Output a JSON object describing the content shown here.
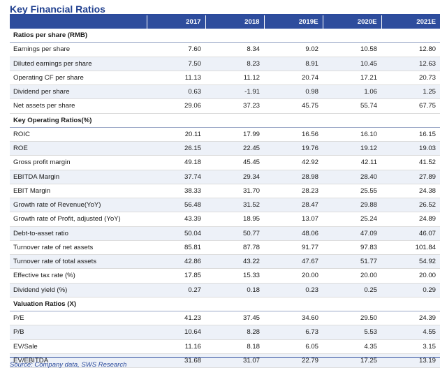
{
  "title": "Key Financial Ratios",
  "columns": [
    "2017",
    "2018",
    "2019E",
    "2020E",
    "2021E"
  ],
  "sections": [
    {
      "heading": "Ratios per share (RMB)",
      "rows": [
        {
          "label": "Earnings per share",
          "values": [
            "7.60",
            "8.34",
            "9.02",
            "10.58",
            "12.80"
          ]
        },
        {
          "label": "Diluted earnings per share",
          "values": [
            "7.50",
            "8.23",
            "8.91",
            "10.45",
            "12.63"
          ]
        },
        {
          "label": "Operating CF per share",
          "values": [
            "11.13",
            "11.12",
            "20.74",
            "17.21",
            "20.73"
          ]
        },
        {
          "label": "Dividend per share",
          "values": [
            "0.63",
            "-1.91",
            "0.98",
            "1.06",
            "1.25"
          ]
        },
        {
          "label": "Net assets per share",
          "values": [
            "29.06",
            "37.23",
            "45.75",
            "55.74",
            "67.75"
          ]
        }
      ]
    },
    {
      "heading": "Key Operating Ratios(%)",
      "rows": [
        {
          "label": "ROIC",
          "values": [
            "20.11",
            "17.99",
            "16.56",
            "16.10",
            "16.15"
          ]
        },
        {
          "label": "ROE",
          "values": [
            "26.15",
            "22.45",
            "19.76",
            "19.12",
            "19.03"
          ]
        },
        {
          "label": "Gross profit margin",
          "values": [
            "49.18",
            "45.45",
            "42.92",
            "42.11",
            "41.52"
          ]
        },
        {
          "label": "EBITDA Margin",
          "values": [
            "37.74",
            "29.34",
            "28.98",
            "28.40",
            "27.89"
          ]
        },
        {
          "label": "EBIT Margin",
          "values": [
            "38.33",
            "31.70",
            "28.23",
            "25.55",
            "24.38"
          ]
        },
        {
          "label": "Growth rate of Revenue(YoY)",
          "values": [
            "56.48",
            "31.52",
            "28.47",
            "29.88",
            "26.52"
          ]
        },
        {
          "label": "Growth rate of Profit, adjusted (YoY)",
          "values": [
            "43.39",
            "18.95",
            "13.07",
            "25.24",
            "24.89"
          ]
        },
        {
          "label": "Debt-to-asset ratio",
          "values": [
            "50.04",
            "50.77",
            "48.06",
            "47.09",
            "46.07"
          ]
        },
        {
          "label": "Turnover rate of net assets",
          "values": [
            "85.81",
            "87.78",
            "91.77",
            "97.83",
            "101.84"
          ]
        },
        {
          "label": "Turnover rate of total assets",
          "values": [
            "42.86",
            "43.22",
            "47.67",
            "51.77",
            "54.92"
          ]
        },
        {
          "label": "Effective tax rate (%)",
          "values": [
            "17.85",
            "15.33",
            "20.00",
            "20.00",
            "20.00"
          ]
        },
        {
          "label": "Dividend yield (%)",
          "values": [
            "0.27",
            "0.18",
            "0.23",
            "0.25",
            "0.29"
          ]
        }
      ]
    },
    {
      "heading": "Valuation Ratios (X)",
      "rows": [
        {
          "label": "P/E",
          "values": [
            "41.23",
            "37.45",
            "34.60",
            "29.50",
            "24.39"
          ]
        },
        {
          "label": "P/B",
          "values": [
            "10.64",
            "8.28",
            "6.73",
            "5.53",
            "4.55"
          ]
        },
        {
          "label": "EV/Sale",
          "values": [
            "11.16",
            "8.18",
            "6.05",
            "4.35",
            "3.15"
          ]
        },
        {
          "label": "EV/EBITDA",
          "values": [
            "31.68",
            "31.07",
            "22.79",
            "17.25",
            "13.19"
          ]
        }
      ]
    }
  ],
  "source": "Source: Company data, SWS Research",
  "colors": {
    "header_bg": "#2e4d9d",
    "title": "#1f3f8f",
    "stripe": "#edf1f8"
  }
}
